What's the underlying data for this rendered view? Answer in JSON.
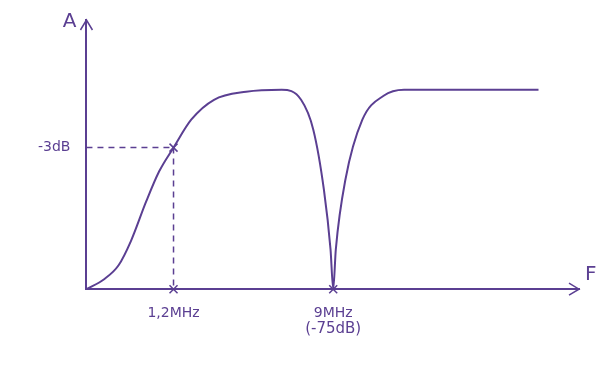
{
  "chart_data": {
    "type": "line",
    "x_label": "F",
    "y_label": "A",
    "x": [
      0.4,
      0.5,
      0.6,
      0.7,
      0.85,
      1.0,
      1.2,
      1.5,
      2,
      3,
      4.7,
      6,
      7,
      8,
      8.7,
      9,
      9.3,
      10.5,
      13,
      17,
      22,
      50,
      120
    ],
    "values": [
      0.0,
      0.05,
      0.12,
      0.24,
      0.44,
      0.59,
      0.71,
      0.85,
      0.95,
      0.99,
      1.0,
      0.95,
      0.8,
      0.5,
      0.2,
      0.00018,
      0.2,
      0.55,
      0.85,
      0.97,
      1.0,
      1.0,
      1.0
    ],
    "color": "#5b3f92",
    "log": "x",
    "xlim": [
      0.4,
      200
    ],
    "xticks": [
      {
        "value": 1.2,
        "label": "1,2MHz"
      },
      {
        "value": 9,
        "label": "9MHz"
      }
    ],
    "ylim": [
      0,
      1.35
    ],
    "yticks": [
      {
        "value": 0.71,
        "label": "-3dB"
      }
    ],
    "grid": false,
    "marked_points": [
      {
        "x": 1.2,
        "y": 0.71
      }
    ],
    "annotations": [
      {
        "x": 9,
        "text": "(-75dB)"
      }
    ]
  }
}
